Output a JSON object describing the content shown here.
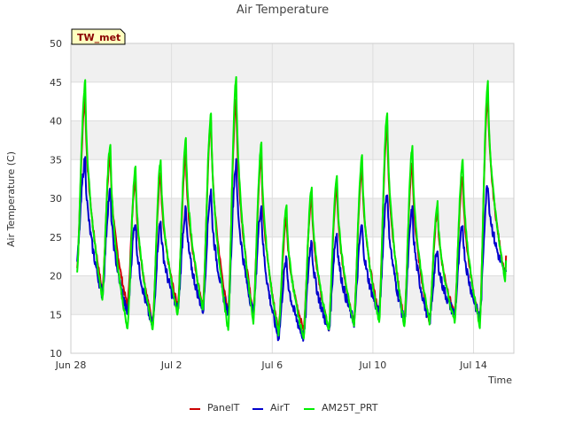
{
  "chart_data": {
    "type": "line",
    "title": "Air Temperature",
    "xlabel": "Time",
    "ylabel": "Air Temperature (C)",
    "badge": "TW_met",
    "xlim": [
      0,
      17.6
    ],
    "ylim": [
      10,
      50
    ],
    "y_ticks": [
      10,
      15,
      20,
      25,
      30,
      35,
      40,
      45,
      50
    ],
    "x_ticks": [
      {
        "value": 0,
        "label": "Jun 28"
      },
      {
        "value": 4,
        "label": "Jul 2"
      },
      {
        "value": 8,
        "label": "Jul 6"
      },
      {
        "value": 12,
        "label": "Jul 10"
      },
      {
        "value": 16,
        "label": "Jul 14"
      }
    ],
    "grid": true,
    "legend_position": "bottom",
    "colors": {
      "PanelT": "#cc0000",
      "AirT": "#0000cc",
      "AM25T_PRT": "#00ee00",
      "band": "#f0f0f0",
      "grid": "#dddddd"
    },
    "series": [
      {
        "name": "PanelT",
        "color": "#cc0000",
        "daily_min": [
          21,
          18,
          16,
          14,
          16,
          16,
          15,
          15,
          13,
          13,
          13,
          14,
          15,
          14,
          14,
          15,
          14,
          20
        ],
        "daily_max": [
          43,
          35.5,
          32.5,
          33,
          35.5,
          40,
          43,
          35.5,
          27.5,
          30.5,
          31.5,
          34,
          39.5,
          34.5,
          28.5,
          33,
          43.5
        ]
      },
      {
        "name": "AirT",
        "color": "#0000cc",
        "daily_min": [
          22,
          17.5,
          15,
          13.5,
          15.5,
          15.5,
          15,
          15,
          12,
          12,
          13,
          14,
          15,
          14,
          14,
          15,
          14.5,
          20
        ],
        "daily_max": [
          35,
          31,
          27,
          27,
          28.5,
          31,
          34.5,
          29,
          22,
          24.5,
          25.5,
          26.5,
          31,
          28.5,
          23,
          26.5,
          32
        ]
      },
      {
        "name": "AM25T_PRT",
        "color": "#00ee00",
        "daily_min": [
          20.5,
          17,
          13,
          13,
          15,
          15.5,
          13,
          14,
          12.5,
          12,
          13,
          13.5,
          14,
          13.5,
          14,
          14,
          13.5,
          19.5
        ],
        "daily_max": [
          45,
          37,
          34,
          35,
          37.5,
          41,
          45.5,
          37,
          29,
          31.5,
          33,
          35.5,
          41,
          36.5,
          29.5,
          35,
          45
        ]
      }
    ]
  }
}
